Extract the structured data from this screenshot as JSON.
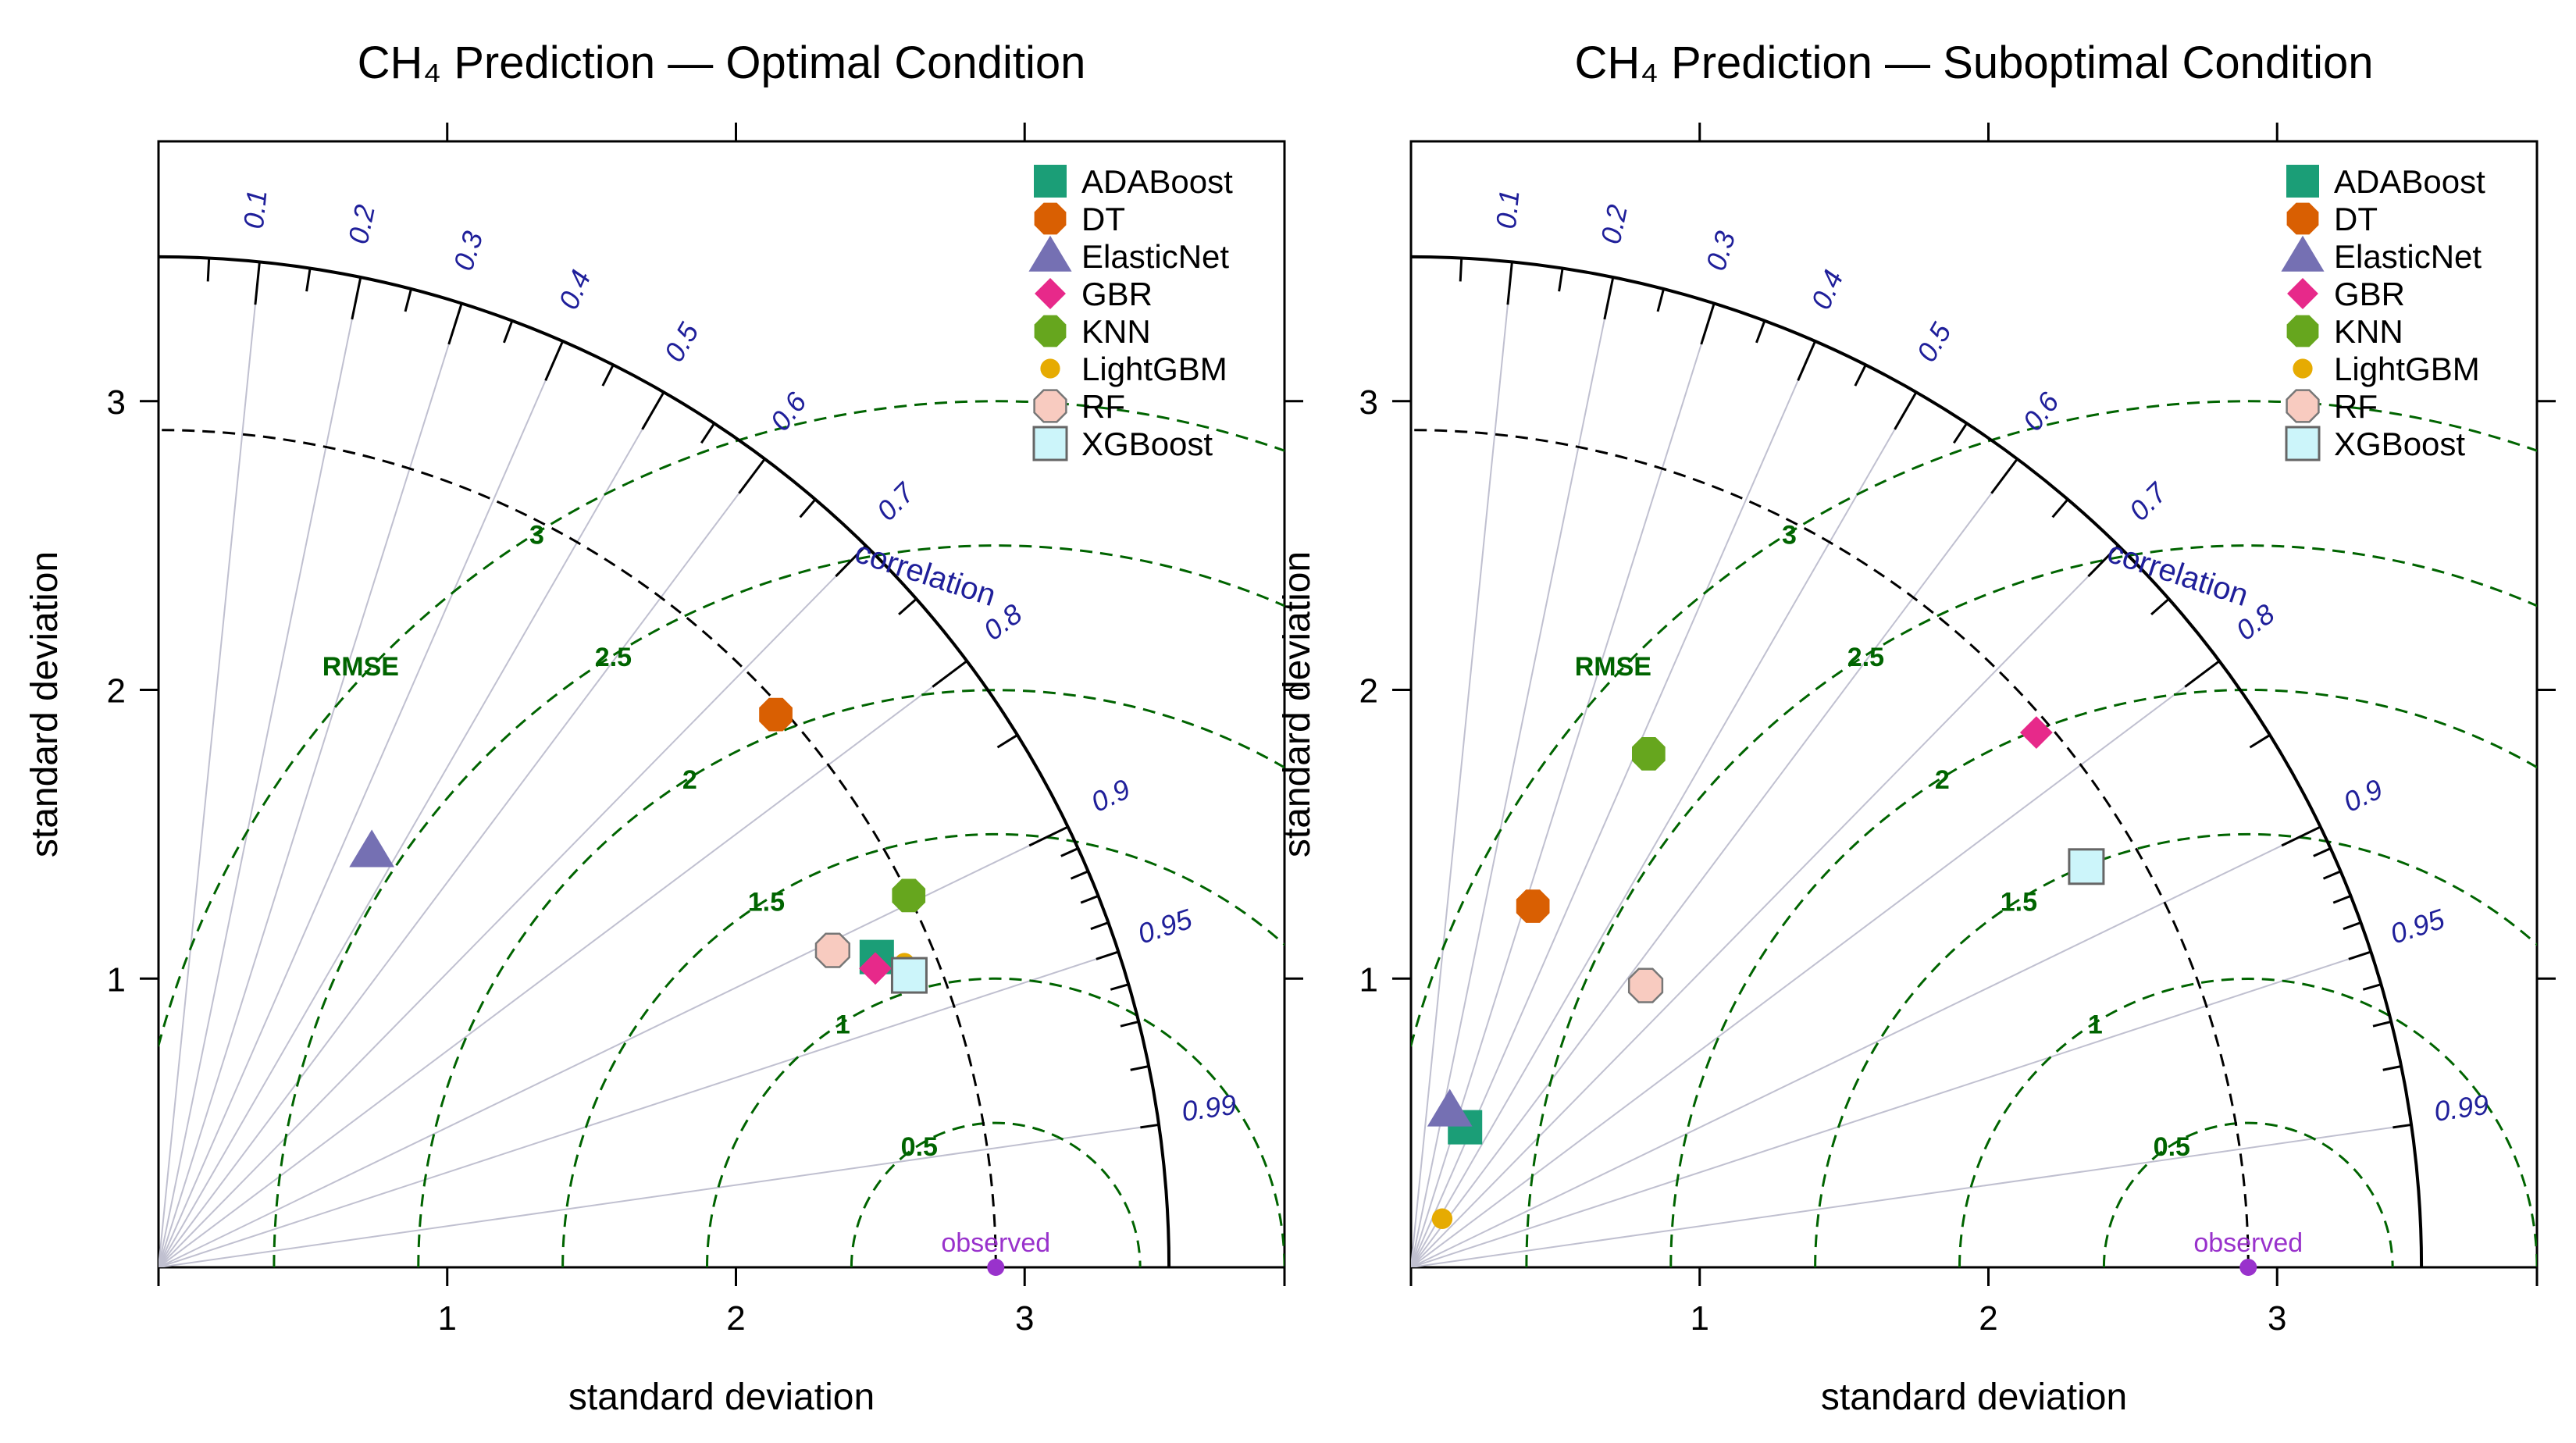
{
  "chart_data": [
    {
      "type": "taylor-diagram",
      "title": "CH₄ Prediction — Optimal Condition",
      "xlabel": "standard deviation",
      "ylabel": "standard deviation",
      "xlim": [
        0,
        3.9
      ],
      "ylim": [
        0,
        3.9
      ],
      "x_ticks": [
        1,
        2,
        3
      ],
      "y_ticks": [
        1,
        2,
        3
      ],
      "max_sd": 3.5,
      "observed_sd": 2.9,
      "observed_label": "observed",
      "correlation_label": "correlation",
      "correlation_ticks": [
        0.1,
        0.2,
        0.3,
        0.4,
        0.5,
        0.6,
        0.7,
        0.8,
        0.9,
        0.95,
        0.99
      ],
      "rmse_label": "RMSE",
      "rmse_contours": [
        0.5,
        1,
        1.5,
        2,
        2.5,
        3
      ],
      "legend_position": "top-right",
      "points": [
        {
          "name": "ADABoost",
          "sd": 2.71,
          "cor": 0.918
        },
        {
          "name": "DT",
          "sd": 2.87,
          "cor": 0.745
        },
        {
          "name": "ElasticNet",
          "sd": 1.62,
          "cor": 0.456
        },
        {
          "name": "GBR",
          "sd": 2.69,
          "cor": 0.923
        },
        {
          "name": "KNN",
          "sd": 2.9,
          "cor": 0.896
        },
        {
          "name": "LightGBM",
          "sd": 2.79,
          "cor": 0.926
        },
        {
          "name": "RF",
          "sd": 2.58,
          "cor": 0.905
        },
        {
          "name": "XGBoost",
          "sd": 2.79,
          "cor": 0.932
        }
      ]
    },
    {
      "type": "taylor-diagram",
      "title": "CH₄ Prediction — Suboptimal Condition",
      "xlabel": "standard deviation",
      "ylabel": "standard deviation",
      "xlim": [
        0,
        3.9
      ],
      "ylim": [
        0,
        3.9
      ],
      "x_ticks": [
        1,
        2,
        3
      ],
      "y_ticks": [
        1,
        2,
        3
      ],
      "max_sd": 3.5,
      "observed_sd": 2.9,
      "observed_label": "observed",
      "correlation_label": "correlation",
      "correlation_ticks": [
        0.1,
        0.2,
        0.3,
        0.4,
        0.5,
        0.6,
        0.7,
        0.8,
        0.9,
        0.95,
        0.99
      ],
      "rmse_label": "RMSE",
      "rmse_contours": [
        0.5,
        1,
        1.5,
        2,
        2.5,
        3
      ],
      "legend_position": "top-right",
      "points": [
        {
          "name": "ADABoost",
          "sd": 0.52,
          "cor": 0.36
        },
        {
          "name": "DT",
          "sd": 1.32,
          "cor": 0.32
        },
        {
          "name": "ElasticNet",
          "sd": 0.56,
          "cor": 0.24
        },
        {
          "name": "GBR",
          "sd": 2.85,
          "cor": 0.76
        },
        {
          "name": "KNN",
          "sd": 1.96,
          "cor": 0.42
        },
        {
          "name": "LightGBM",
          "sd": 0.2,
          "cor": 0.54
        },
        {
          "name": "RF",
          "sd": 1.27,
          "cor": 0.64
        },
        {
          "name": "XGBoost",
          "sd": 2.72,
          "cor": 0.86
        }
      ]
    }
  ],
  "legend": [
    {
      "name": "ADABoost",
      "shape": "square",
      "color": "#1b9e77"
    },
    {
      "name": "DT",
      "shape": "octagon",
      "color": "#d95f02"
    },
    {
      "name": "ElasticNet",
      "shape": "triangle",
      "color": "#7570b3"
    },
    {
      "name": "GBR",
      "shape": "diamond",
      "color": "#e7298a"
    },
    {
      "name": "KNN",
      "shape": "octagon",
      "color": "#66a61e"
    },
    {
      "name": "LightGBM",
      "shape": "circle",
      "color": "#e6ab02"
    },
    {
      "name": "RF",
      "shape": "octagon-outline",
      "color": "#f8cbc0"
    },
    {
      "name": "XGBoost",
      "shape": "square-outline",
      "color": "#ccf5fa"
    }
  ],
  "colors": {
    "correlation": "#1f1f9a",
    "rmse": "#006400",
    "observed": "#9932cc",
    "radial": "#c0c0d0",
    "axis": "#000000"
  }
}
